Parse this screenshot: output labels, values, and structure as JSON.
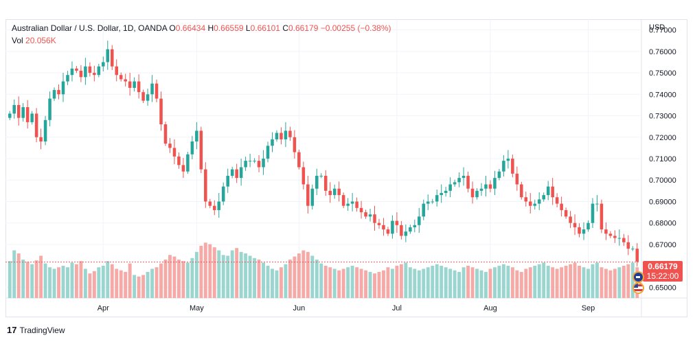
{
  "header": {
    "symbol": "Australian Dollar / U.S. Dollar, 1D, OANDA",
    "o_label": "O",
    "o_value": "0.66434",
    "h_label": "H",
    "h_value": "0.66559",
    "l_label": "L",
    "l_value": "0.66101",
    "c_label": "C",
    "c_value": "0.66179",
    "change": "−0.00255 (−0.38%)",
    "vol_label": "Vol",
    "vol_value": "20.056K"
  },
  "currency": "USD",
  "last_price": {
    "price": "0.66179",
    "countdown": "15:22:00"
  },
  "branding": {
    "name": "TradingView",
    "logo_mark": "17"
  },
  "colors": {
    "up": "#26a69a",
    "down": "#ef5350",
    "up_vol": "#9ad6cf",
    "down_vol": "#f5aaa8",
    "grid": "#f0f3fa",
    "price_line": "#ef5350"
  },
  "chart_data": {
    "type": "candlestick",
    "ylim": [
      0.645,
      0.775
    ],
    "y_ticks": [
      "0.77000",
      "0.76000",
      "0.75000",
      "0.74000",
      "0.73000",
      "0.72000",
      "0.71000",
      "0.70000",
      "0.69000",
      "0.68000",
      "0.67000",
      "0.65000"
    ],
    "x_ticks": [
      {
        "label": "Apr",
        "index": 21
      },
      {
        "label": "May",
        "index": 42
      },
      {
        "label": "Jun",
        "index": 65
      },
      {
        "label": "Jul",
        "index": 87
      },
      {
        "label": "Aug",
        "index": 108
      },
      {
        "label": "Sep",
        "index": 130
      }
    ],
    "path": [
      0.731,
      0.735,
      0.729,
      0.734,
      0.727,
      0.731,
      0.72,
      0.718,
      0.728,
      0.738,
      0.742,
      0.74,
      0.746,
      0.749,
      0.752,
      0.751,
      0.748,
      0.753,
      0.75,
      0.749,
      0.753,
      0.755,
      0.761,
      0.753,
      0.749,
      0.747,
      0.746,
      0.743,
      0.746,
      0.741,
      0.737,
      0.74,
      0.745,
      0.738,
      0.726,
      0.717,
      0.715,
      0.711,
      0.707,
      0.704,
      0.712,
      0.718,
      0.723,
      0.705,
      0.69,
      0.688,
      0.686,
      0.69,
      0.697,
      0.702,
      0.705,
      0.701,
      0.706,
      0.709,
      0.709,
      0.709,
      0.706,
      0.71,
      0.716,
      0.719,
      0.722,
      0.719,
      0.723,
      0.72,
      0.713,
      0.706,
      0.698,
      0.688,
      0.696,
      0.702,
      0.702,
      0.695,
      0.693,
      0.696,
      0.693,
      0.688,
      0.689,
      0.69,
      0.687,
      0.685,
      0.683,
      0.684,
      0.68,
      0.679,
      0.677,
      0.675,
      0.681,
      0.679,
      0.674,
      0.676,
      0.678,
      0.679,
      0.683,
      0.689,
      0.69,
      0.69,
      0.693,
      0.694,
      0.695,
      0.698,
      0.699,
      0.701,
      0.702,
      0.696,
      0.692,
      0.695,
      0.696,
      0.698,
      0.696,
      0.701,
      0.704,
      0.709,
      0.71,
      0.703,
      0.698,
      0.692,
      0.69,
      0.688,
      0.689,
      0.691,
      0.693,
      0.697,
      0.692,
      0.689,
      0.686,
      0.683,
      0.68,
      0.678,
      0.675,
      0.677,
      0.68,
      0.689,
      0.689,
      0.677,
      0.675,
      0.674,
      0.673,
      0.673,
      0.671,
      0.668,
      0.668,
      0.662
    ],
    "volume": [
      0.48,
      0.62,
      0.58,
      0.5,
      0.47,
      0.44,
      0.49,
      0.55,
      0.45,
      0.4,
      0.38,
      0.4,
      0.42,
      0.4,
      0.46,
      0.44,
      0.48,
      0.38,
      0.32,
      0.35,
      0.4,
      0.42,
      0.48,
      0.44,
      0.38,
      0.36,
      0.34,
      0.45,
      0.3,
      0.28,
      0.3,
      0.34,
      0.38,
      0.4,
      0.45,
      0.5,
      0.56,
      0.54,
      0.5,
      0.48,
      0.46,
      0.52,
      0.6,
      0.68,
      0.72,
      0.7,
      0.66,
      0.62,
      0.56,
      0.55,
      0.62,
      0.65,
      0.6,
      0.58,
      0.55,
      0.52,
      0.5,
      0.46,
      0.42,
      0.38,
      0.36,
      0.4,
      0.44,
      0.5,
      0.54,
      0.58,
      0.62,
      0.6,
      0.55,
      0.5,
      0.45,
      0.42,
      0.4,
      0.38,
      0.36,
      0.38,
      0.4,
      0.42,
      0.4,
      0.38,
      0.36,
      0.34,
      0.32,
      0.34,
      0.36,
      0.4,
      0.38,
      0.42,
      0.44,
      0.46,
      0.4,
      0.38,
      0.36,
      0.38,
      0.4,
      0.42,
      0.44,
      0.42,
      0.4,
      0.38,
      0.36,
      0.34,
      0.4,
      0.42,
      0.4,
      0.38,
      0.36,
      0.34,
      0.38,
      0.4,
      0.42,
      0.44,
      0.42,
      0.4,
      0.36,
      0.34,
      0.38,
      0.4,
      0.42,
      0.44,
      0.46,
      0.42,
      0.4,
      0.38,
      0.4,
      0.42,
      0.44,
      0.46,
      0.42,
      0.4,
      0.38,
      0.44,
      0.46,
      0.4,
      0.38,
      0.36,
      0.38,
      0.4,
      0.42,
      0.44,
      0.46,
      0.4
    ]
  }
}
